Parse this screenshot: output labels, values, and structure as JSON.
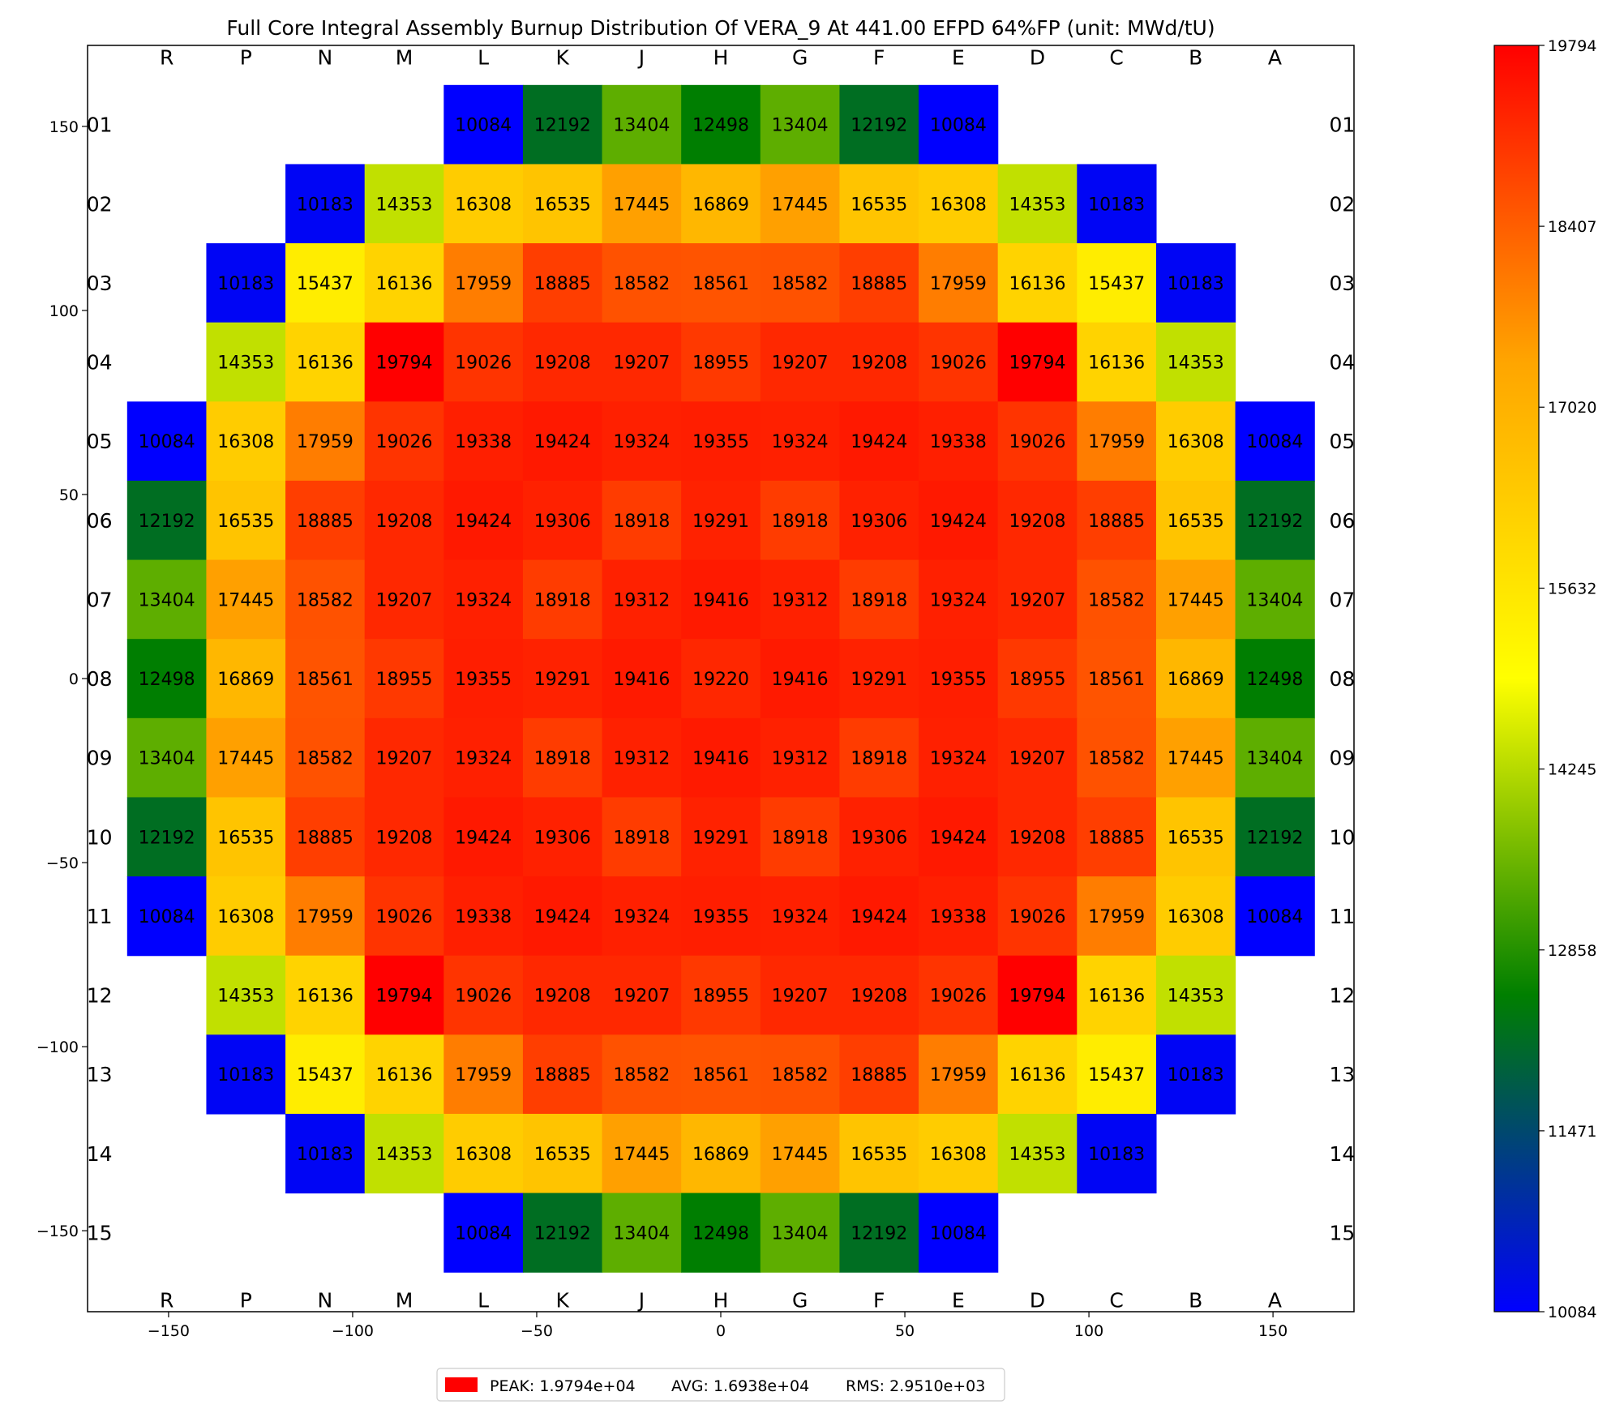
{
  "chart_data": {
    "type": "heatmap",
    "title": "Full Core Integral Assembly Burnup Distribution Of VERA_9 At 441.00 EFPD 64%FP (unit: MWd/tU)",
    "columns": [
      "R",
      "P",
      "N",
      "M",
      "L",
      "K",
      "J",
      "H",
      "G",
      "F",
      "E",
      "D",
      "C",
      "B",
      "A"
    ],
    "rows": [
      "01",
      "02",
      "03",
      "04",
      "05",
      "06",
      "07",
      "08",
      "09",
      "10",
      "11",
      "12",
      "13",
      "14",
      "15"
    ],
    "values": [
      [
        null,
        null,
        null,
        null,
        10084,
        12192,
        13404,
        12498,
        13404,
        12192,
        10084,
        null,
        null,
        null,
        null
      ],
      [
        null,
        null,
        10183,
        14353,
        16308,
        16535,
        17445,
        16869,
        17445,
        16535,
        16308,
        14353,
        10183,
        null,
        null
      ],
      [
        null,
        10183,
        15437,
        16136,
        17959,
        18885,
        18582,
        18561,
        18582,
        18885,
        17959,
        16136,
        15437,
        10183,
        null
      ],
      [
        null,
        14353,
        16136,
        19794,
        19026,
        19208,
        19207,
        18955,
        19207,
        19208,
        19026,
        19794,
        16136,
        14353,
        null
      ],
      [
        10084,
        16308,
        17959,
        19026,
        19338,
        19424,
        19324,
        19355,
        19324,
        19424,
        19338,
        19026,
        17959,
        16308,
        10084
      ],
      [
        12192,
        16535,
        18885,
        19208,
        19424,
        19306,
        18918,
        19291,
        18918,
        19306,
        19424,
        19208,
        18885,
        16535,
        12192
      ],
      [
        13404,
        17445,
        18582,
        19207,
        19324,
        18918,
        19312,
        19416,
        19312,
        18918,
        19324,
        19207,
        18582,
        17445,
        13404
      ],
      [
        12498,
        16869,
        18561,
        18955,
        19355,
        19291,
        19416,
        19220,
        19416,
        19291,
        19355,
        18955,
        18561,
        16869,
        12498
      ],
      [
        13404,
        17445,
        18582,
        19207,
        19324,
        18918,
        19312,
        19416,
        19312,
        18918,
        19324,
        19207,
        18582,
        17445,
        13404
      ],
      [
        12192,
        16535,
        18885,
        19208,
        19424,
        19306,
        18918,
        19291,
        18918,
        19306,
        19424,
        19208,
        18885,
        16535,
        12192
      ],
      [
        10084,
        16308,
        17959,
        19026,
        19338,
        19424,
        19324,
        19355,
        19324,
        19424,
        19338,
        19026,
        17959,
        16308,
        10084
      ],
      [
        null,
        14353,
        16136,
        19794,
        19026,
        19208,
        19207,
        18955,
        19207,
        19208,
        19026,
        19794,
        16136,
        14353,
        null
      ],
      [
        null,
        10183,
        15437,
        16136,
        17959,
        18885,
        18582,
        18561,
        18582,
        18885,
        17959,
        16136,
        15437,
        10183,
        null
      ],
      [
        null,
        null,
        10183,
        14353,
        16308,
        16535,
        17445,
        16869,
        17445,
        16535,
        16308,
        14353,
        10183,
        null,
        null
      ],
      [
        null,
        null,
        null,
        null,
        10084,
        12192,
        13404,
        12498,
        13404,
        12192,
        10084,
        null,
        null,
        null,
        null
      ]
    ],
    "xlim": [
      -172,
      172
    ],
    "ylim": [
      -172,
      172
    ],
    "x_ticks": [
      -150,
      -100,
      -50,
      0,
      50,
      100,
      150
    ],
    "x_tick_labels": [
      "−150",
      "−100",
      "−50",
      "0",
      "50",
      "100",
      "150"
    ],
    "y_ticks": [
      150,
      100,
      50,
      0,
      -50,
      -100,
      -150
    ],
    "y_tick_labels": [
      "150",
      "100",
      "50",
      "0",
      "−50",
      "−100",
      "−150"
    ],
    "assembly_pitch": 21.5,
    "colorbar": {
      "min": 10084,
      "max": 19794,
      "ticks": [
        10084,
        11471,
        12858,
        14245,
        15632,
        17020,
        18407,
        19794
      ],
      "tick_labels": [
        "10084",
        "11471",
        "12858",
        "14245",
        "15632",
        "17020",
        "18407",
        "19794"
      ],
      "colors": [
        "#0000ff",
        "#007f00",
        "#ffff00",
        "#ffa500",
        "#ff0000"
      ]
    },
    "legend": {
      "label": "PEAK: 1.9794e+04",
      "stats": [
        "AVG: 1.6938e+04",
        "RMS: 2.9510e+03"
      ],
      "swatch_color": "#ff0000",
      "placement": "bottom-center"
    }
  }
}
